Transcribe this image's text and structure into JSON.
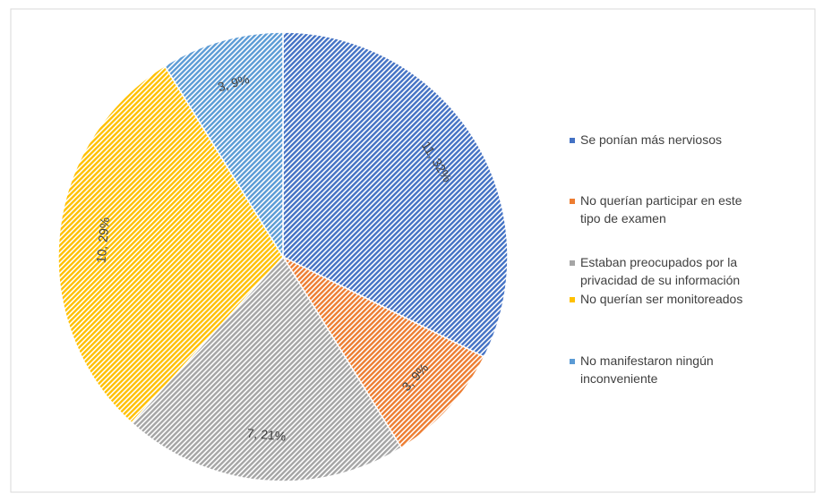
{
  "chart_data": {
    "type": "pie",
    "categories": [
      "Se ponían más nerviosos",
      "No querían participar en este tipo de examen",
      "Estaban preocupados por la privacidad de su información",
      "No querían ser monitoreados",
      "No manifestaron ningún inconveniente"
    ],
    "values": [
      11,
      3,
      7,
      10,
      3
    ],
    "value_labels": [
      "11, 32%",
      "3, 9%",
      "7, 21%",
      "10, 29%",
      "3, 9%"
    ],
    "colors": [
      "#4472c4",
      "#ed7d31",
      "#a5a5a5",
      "#ffc000",
      "#5b9bd5"
    ],
    "legend": "right"
  }
}
